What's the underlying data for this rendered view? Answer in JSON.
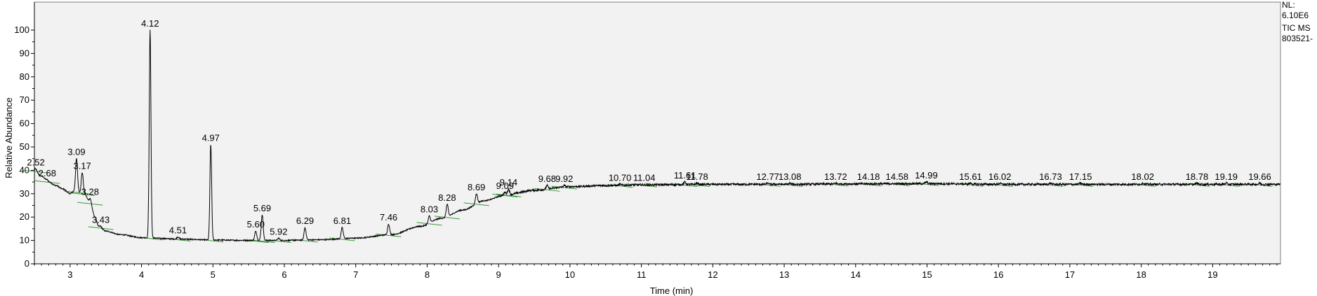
{
  "info": {
    "nl_label": "NL:",
    "nl_value": "6.10E6",
    "trace": "TIC  MS",
    "file": "803521-"
  },
  "chart_data": {
    "type": "line",
    "title": "",
    "xlabel": "Time (min)",
    "ylabel": "Relative Abundance",
    "xlim": [
      2.5,
      19.95
    ],
    "ylim": [
      0,
      100
    ],
    "x_ticks": [
      3,
      4,
      5,
      6,
      7,
      8,
      9,
      10,
      11,
      12,
      13,
      14,
      15,
      16,
      17,
      18,
      19
    ],
    "y_ticks": [
      0,
      10,
      20,
      30,
      40,
      50,
      60,
      70,
      80,
      90,
      100
    ],
    "grid": false,
    "baseline": [
      [
        2.5,
        40
      ],
      [
        2.6,
        37.5
      ],
      [
        2.7,
        35
      ],
      [
        2.8,
        33.5
      ],
      [
        2.9,
        32
      ],
      [
        3.0,
        30
      ],
      [
        3.05,
        31
      ],
      [
        3.2,
        30
      ],
      [
        3.28,
        26
      ],
      [
        3.35,
        20
      ],
      [
        3.4,
        16
      ],
      [
        3.5,
        14
      ],
      [
        3.7,
        12.5
      ],
      [
        4.0,
        11.2
      ],
      [
        4.5,
        10.6
      ],
      [
        5.0,
        10.2
      ],
      [
        5.5,
        10
      ],
      [
        6.0,
        10
      ],
      [
        6.5,
        10.3
      ],
      [
        7.0,
        11
      ],
      [
        7.5,
        12.5
      ],
      [
        7.9,
        16
      ],
      [
        8.2,
        19.5
      ],
      [
        8.5,
        23
      ],
      [
        8.8,
        27
      ],
      [
        9.1,
        29.5
      ],
      [
        9.5,
        31.5
      ],
      [
        10.0,
        33
      ],
      [
        10.5,
        33.5
      ],
      [
        11.0,
        33.8
      ],
      [
        12.0,
        34
      ],
      [
        13.0,
        34
      ],
      [
        14.0,
        34.2
      ],
      [
        15.0,
        34.3
      ],
      [
        16.0,
        34
      ],
      [
        17.0,
        34
      ],
      [
        18.0,
        34
      ],
      [
        19.0,
        34
      ],
      [
        19.95,
        34
      ]
    ],
    "peaks": [
      {
        "rt": 2.52,
        "label": "2.52",
        "y": 40.5
      },
      {
        "rt": 2.68,
        "label": "2.68",
        "y": 36
      },
      {
        "rt": 3.09,
        "label": "3.09",
        "y": 45
      },
      {
        "rt": 3.17,
        "label": "3.17",
        "y": 39
      },
      {
        "rt": 3.28,
        "label": "3.28",
        "y": 28
      },
      {
        "rt": 3.43,
        "label": "3.43",
        "y": 16
      },
      {
        "rt": 4.12,
        "label": "4.12",
        "y": 100
      },
      {
        "rt": 4.51,
        "label": "4.51",
        "y": 11.5
      },
      {
        "rt": 4.97,
        "label": "4.97",
        "y": 51
      },
      {
        "rt": 5.6,
        "label": "5.60",
        "y": 14
      },
      {
        "rt": 5.69,
        "label": "5.69",
        "y": 21
      },
      {
        "rt": 5.92,
        "label": "5.92",
        "y": 11
      },
      {
        "rt": 6.29,
        "label": "6.29",
        "y": 15.5
      },
      {
        "rt": 6.81,
        "label": "6.81",
        "y": 15.5
      },
      {
        "rt": 7.46,
        "label": "7.46",
        "y": 17
      },
      {
        "rt": 8.03,
        "label": "8.03",
        "y": 20.5
      },
      {
        "rt": 8.28,
        "label": "8.28",
        "y": 25.5
      },
      {
        "rt": 8.69,
        "label": "8.69",
        "y": 30
      },
      {
        "rt": 9.09,
        "label": "9.09",
        "y": 30.5
      },
      {
        "rt": 9.14,
        "label": "9.14",
        "y": 32
      },
      {
        "rt": 9.68,
        "label": "9.68",
        "y": 33.5
      },
      {
        "rt": 9.92,
        "label": "9.92",
        "y": 33.5
      },
      {
        "rt": 10.7,
        "label": "10.70",
        "y": 34
      },
      {
        "rt": 11.04,
        "label": "11.04",
        "y": 34
      },
      {
        "rt": 11.61,
        "label": "11.61",
        "y": 35
      },
      {
        "rt": 11.78,
        "label": "11.78",
        "y": 34.5
      },
      {
        "rt": 12.77,
        "label": "12.77",
        "y": 34.5
      },
      {
        "rt": 13.08,
        "label": "13.08",
        "y": 34.5
      },
      {
        "rt": 13.72,
        "label": "13.72",
        "y": 34.5
      },
      {
        "rt": 14.18,
        "label": "14.18",
        "y": 34.5
      },
      {
        "rt": 14.58,
        "label": "14.58",
        "y": 34.5
      },
      {
        "rt": 14.99,
        "label": "14.99",
        "y": 35
      },
      {
        "rt": 15.61,
        "label": "15.61",
        "y": 34.5
      },
      {
        "rt": 16.02,
        "label": "16.02",
        "y": 34.5
      },
      {
        "rt": 16.73,
        "label": "16.73",
        "y": 34.5
      },
      {
        "rt": 17.15,
        "label": "17.15",
        "y": 34.5
      },
      {
        "rt": 18.02,
        "label": "18.02",
        "y": 34.5
      },
      {
        "rt": 18.78,
        "label": "18.78",
        "y": 34.5
      },
      {
        "rt": 19.19,
        "label": "19.19",
        "y": 34.5
      },
      {
        "rt": 19.66,
        "label": "19.66",
        "y": 34.5
      }
    ],
    "colors": {
      "trace": "#000000",
      "plot_background": "#f2f2f2",
      "peak_marker": "#3a9a3a"
    }
  }
}
